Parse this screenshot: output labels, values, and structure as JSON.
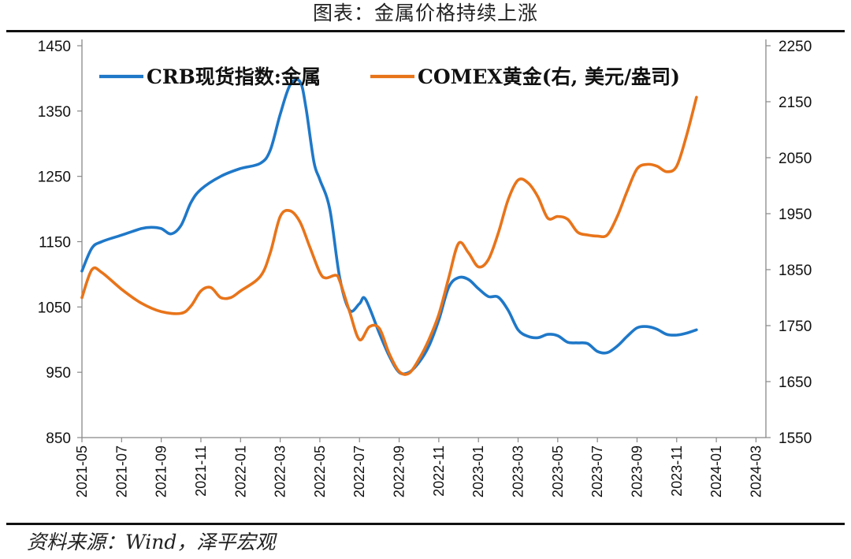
{
  "page": {
    "title": "图表：金属价格持续上涨",
    "source": "资料来源：Wind，泽平宏观"
  },
  "chart_data": {
    "type": "line",
    "title": "图表：金属价格持续上涨",
    "x_tick_labels": [
      "2021-05",
      "2021-07",
      "2021-09",
      "2021-11",
      "2022-01",
      "2022-03",
      "2022-05",
      "2022-07",
      "2022-09",
      "2022-11",
      "2023-01",
      "2023-03",
      "2023-05",
      "2023-07",
      "2023-09",
      "2023-11",
      "2024-01",
      "2024-03"
    ],
    "x_range_months": [
      0,
      34.5
    ],
    "y_left": {
      "min": 850,
      "max": 1450,
      "ticks": [
        "850",
        "950",
        "1050",
        "1150",
        "1250",
        "1350",
        "1450"
      ]
    },
    "y_right": {
      "min": 1550,
      "max": 2250,
      "ticks": [
        "1550",
        "1650",
        "1750",
        "1850",
        "1950",
        "2050",
        "2150",
        "2250"
      ]
    },
    "legend_position": "top",
    "series": [
      {
        "name": "CRB现货指数:金属",
        "axis": "left",
        "color": "#1f78c8",
        "points": [
          [
            0,
            1105
          ],
          [
            0.5,
            1140
          ],
          [
            1,
            1150
          ],
          [
            2,
            1160
          ],
          [
            3,
            1170
          ],
          [
            3.5,
            1172
          ],
          [
            4,
            1170
          ],
          [
            4.5,
            1162
          ],
          [
            5,
            1175
          ],
          [
            5.5,
            1210
          ],
          [
            6,
            1230
          ],
          [
            7,
            1250
          ],
          [
            8,
            1262
          ],
          [
            9,
            1270
          ],
          [
            9.5,
            1290
          ],
          [
            10,
            1345
          ],
          [
            10.5,
            1390
          ],
          [
            11,
            1395
          ],
          [
            11.3,
            1355
          ],
          [
            11.7,
            1272
          ],
          [
            12,
            1245
          ],
          [
            12.5,
            1200
          ],
          [
            13,
            1095
          ],
          [
            13.5,
            1045
          ],
          [
            14,
            1055
          ],
          [
            14.3,
            1062
          ],
          [
            15,
            1010
          ],
          [
            15.5,
            975
          ],
          [
            16,
            950
          ],
          [
            16.5,
            950
          ],
          [
            17,
            965
          ],
          [
            17.5,
            990
          ],
          [
            18,
            1030
          ],
          [
            18.5,
            1080
          ],
          [
            19,
            1095
          ],
          [
            19.5,
            1092
          ],
          [
            20,
            1078
          ],
          [
            20.5,
            1066
          ],
          [
            21,
            1065
          ],
          [
            21.5,
            1045
          ],
          [
            22,
            1015
          ],
          [
            22.5,
            1005
          ],
          [
            23,
            1003
          ],
          [
            23.5,
            1008
          ],
          [
            24,
            1006
          ],
          [
            24.5,
            996
          ],
          [
            25,
            995
          ],
          [
            25.5,
            994
          ],
          [
            26,
            982
          ],
          [
            26.5,
            980
          ],
          [
            27,
            990
          ],
          [
            27.5,
            1005
          ],
          [
            28,
            1018
          ],
          [
            28.5,
            1020
          ],
          [
            29,
            1016
          ],
          [
            29.5,
            1008
          ],
          [
            30,
            1007
          ],
          [
            30.5,
            1010
          ],
          [
            31,
            1015
          ]
        ]
      },
      {
        "name": "COMEX黄金(右, 美元/盎司)",
        "axis": "right",
        "color": "#e8741a",
        "points": [
          [
            0,
            1800
          ],
          [
            0.5,
            1850
          ],
          [
            1,
            1845
          ],
          [
            2,
            1815
          ],
          [
            3,
            1790
          ],
          [
            4,
            1775
          ],
          [
            5,
            1772
          ],
          [
            5.5,
            1785
          ],
          [
            6,
            1812
          ],
          [
            6.5,
            1818
          ],
          [
            7,
            1800
          ],
          [
            7.5,
            1800
          ],
          [
            8,
            1812
          ],
          [
            9,
            1838
          ],
          [
            9.5,
            1880
          ],
          [
            10,
            1945
          ],
          [
            10.5,
            1955
          ],
          [
            11,
            1935
          ],
          [
            11.5,
            1890
          ],
          [
            12,
            1845
          ],
          [
            12.3,
            1835
          ],
          [
            12.8,
            1840
          ],
          [
            13,
            1830
          ],
          [
            13.5,
            1775
          ],
          [
            14,
            1725
          ],
          [
            14.5,
            1748
          ],
          [
            15,
            1745
          ],
          [
            15.5,
            1700
          ],
          [
            16,
            1668
          ],
          [
            16.5,
            1665
          ],
          [
            17,
            1690
          ],
          [
            17.5,
            1725
          ],
          [
            18,
            1770
          ],
          [
            18.5,
            1835
          ],
          [
            19,
            1897
          ],
          [
            19.5,
            1880
          ],
          [
            20,
            1855
          ],
          [
            20.5,
            1868
          ],
          [
            21,
            1915
          ],
          [
            21.5,
            1975
          ],
          [
            22,
            2010
          ],
          [
            22.5,
            2005
          ],
          [
            23,
            1980
          ],
          [
            23.5,
            1942
          ],
          [
            24,
            1945
          ],
          [
            24.5,
            1940
          ],
          [
            25,
            1917
          ],
          [
            25.5,
            1912
          ],
          [
            26,
            1910
          ],
          [
            26.5,
            1912
          ],
          [
            27,
            1945
          ],
          [
            27.5,
            1990
          ],
          [
            28,
            2030
          ],
          [
            28.5,
            2038
          ],
          [
            29,
            2035
          ],
          [
            29.5,
            2025
          ],
          [
            30,
            2035
          ],
          [
            30.5,
            2090
          ],
          [
            31,
            2158
          ]
        ]
      }
    ]
  }
}
